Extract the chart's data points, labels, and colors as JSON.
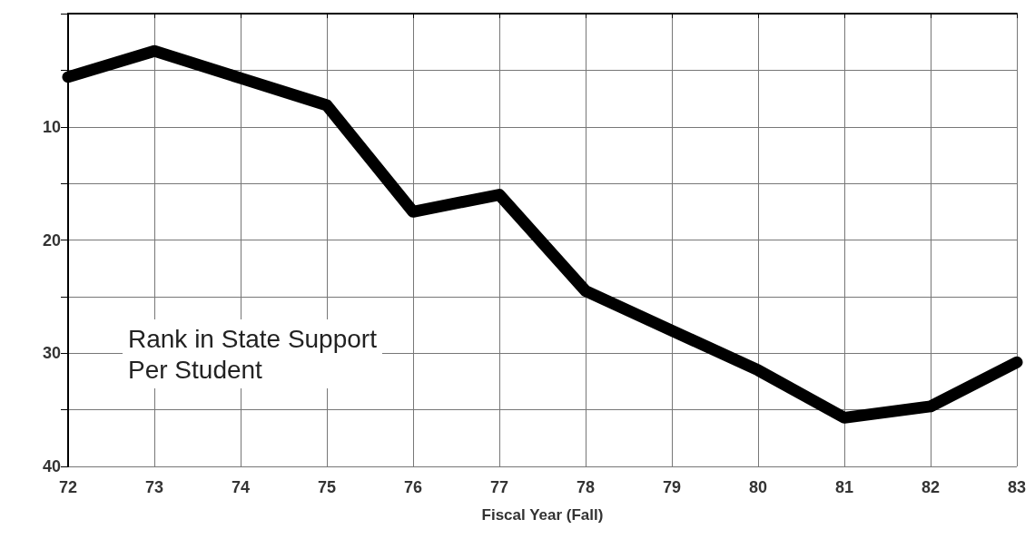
{
  "chart_data": {
    "type": "line",
    "xlabel": "Fiscal Year (Fall)",
    "annotations": [
      "Rank in State Support\nPer Student"
    ],
    "categories": [
      "72",
      "73",
      "74",
      "75",
      "76",
      "77",
      "78",
      "79",
      "80",
      "81",
      "82",
      "83"
    ],
    "series": [
      {
        "color": "#000000",
        "values": [
          5.6,
          3.3,
          5.7,
          8.1,
          17.5,
          16,
          24.5,
          28,
          31.5,
          35.7,
          34.7,
          30.8
        ]
      }
    ],
    "ylim": [
      40,
      0
    ],
    "yticks": [
      {
        "value": 0,
        "label": null
      },
      {
        "value": 5,
        "label": null
      },
      10,
      {
        "value": 15,
        "label": null
      },
      20,
      {
        "value": 25,
        "label": null
      },
      30,
      {
        "value": 35,
        "label": null
      },
      40
    ],
    "grid": true,
    "line_style": "solid"
  }
}
